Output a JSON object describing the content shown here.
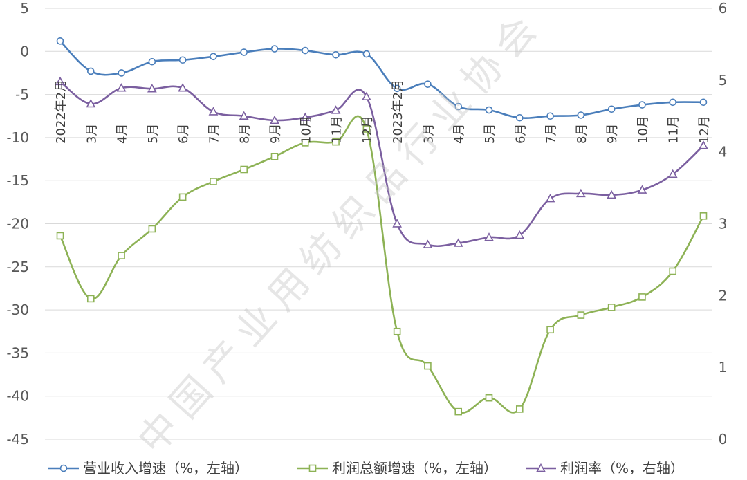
{
  "chart_data": {
    "type": "line",
    "categories": [
      "2022年2月",
      "3月",
      "4月",
      "5月",
      "6月",
      "7月",
      "8月",
      "9月",
      "10月",
      "11月",
      "12月",
      "2023年2月",
      "3月",
      "4月",
      "5月",
      "6月",
      "7月",
      "8月",
      "9月",
      "10月",
      "11月",
      "12月"
    ],
    "left_axis": {
      "ticks": [
        "5",
        "0",
        "-5",
        "-10",
        "-15",
        "-20",
        "-25",
        "-30",
        "-35",
        "-40",
        "-45"
      ],
      "ylim": [
        -45,
        5
      ]
    },
    "right_axis": {
      "ticks": [
        "6",
        "5",
        "4",
        "3",
        "2",
        "1",
        "0"
      ],
      "ylim": [
        0,
        6
      ]
    },
    "grid": "horizontal",
    "legend_position": "bottom",
    "series": [
      {
        "name": "营业收入增速（%，左轴）",
        "axis": "left",
        "marker": "circle",
        "color": "#4a7ebb",
        "values": [
          1.2,
          -2.3,
          -2.5,
          -1.2,
          -1.0,
          -0.6,
          -0.1,
          0.3,
          0.1,
          -0.4,
          -0.3,
          -4.3,
          -3.8,
          -6.4,
          -6.8,
          -7.7,
          -7.5,
          -7.4,
          -6.7,
          -6.2,
          -5.9,
          -5.9
        ]
      },
      {
        "name": "利润总额增速（%，左轴）",
        "axis": "left",
        "marker": "square",
        "color": "#8db255",
        "values": [
          -21.4,
          -28.7,
          -23.7,
          -20.6,
          -16.9,
          -15.1,
          -13.7,
          -12.2,
          -10.6,
          -10.5,
          -9.0,
          -32.5,
          -36.5,
          -41.8,
          -40.2,
          -41.5,
          -32.3,
          -30.6,
          -29.7,
          -28.5,
          -25.5,
          -19.1
        ]
      },
      {
        "name": "利润率（%，右轴）",
        "axis": "right",
        "marker": "triangle",
        "color": "#7b5fa0",
        "values": [
          4.98,
          4.67,
          4.89,
          4.88,
          4.89,
          4.56,
          4.5,
          4.44,
          4.48,
          4.58,
          4.77,
          3.0,
          2.71,
          2.73,
          2.81,
          2.84,
          3.35,
          3.42,
          3.4,
          3.47,
          3.69,
          4.09
        ]
      }
    ]
  },
  "watermark": "中国产业用纺织品行业协会"
}
